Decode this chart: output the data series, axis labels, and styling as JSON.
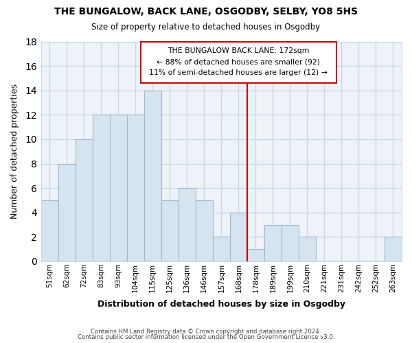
{
  "title": "THE BUNGALOW, BACK LANE, OSGODBY, SELBY, YO8 5HS",
  "subtitle": "Size of property relative to detached houses in Osgodby",
  "xlabel": "Distribution of detached houses by size in Osgodby",
  "ylabel": "Number of detached properties",
  "bar_labels": [
    "51sqm",
    "62sqm",
    "72sqm",
    "83sqm",
    "93sqm",
    "104sqm",
    "115sqm",
    "125sqm",
    "136sqm",
    "146sqm",
    "157sqm",
    "168sqm",
    "178sqm",
    "189sqm",
    "199sqm",
    "210sqm",
    "221sqm",
    "231sqm",
    "242sqm",
    "252sqm",
    "263sqm"
  ],
  "bar_values": [
    5,
    8,
    10,
    12,
    12,
    12,
    14,
    5,
    6,
    5,
    2,
    4,
    1,
    3,
    3,
    2,
    0,
    0,
    0,
    0,
    2
  ],
  "bar_color": "#d6e4f0",
  "bar_edge_color": "#a0b8d0",
  "vline_x": 11.5,
  "vline_color": "#cc0000",
  "annotation_title": "THE BUNGALOW BACK LANE: 172sqm",
  "annotation_line1": "← 88% of detached houses are smaller (92)",
  "annotation_line2": "11% of semi-detached houses are larger (12) →",
  "annotation_box_color": "#ffffff",
  "annotation_box_edge": "#cc0000",
  "ylim": [
    0,
    18
  ],
  "yticks": [
    0,
    2,
    4,
    6,
    8,
    10,
    12,
    14,
    16,
    18
  ],
  "footer1": "Contains HM Land Registry data © Crown copyright and database right 2024.",
  "footer2": "Contains public sector information licensed under the Open Government Licence v3.0.",
  "bg_color": "#ffffff",
  "plot_bg_color": "#eef3f8",
  "grid_color": "#c8d8e8"
}
